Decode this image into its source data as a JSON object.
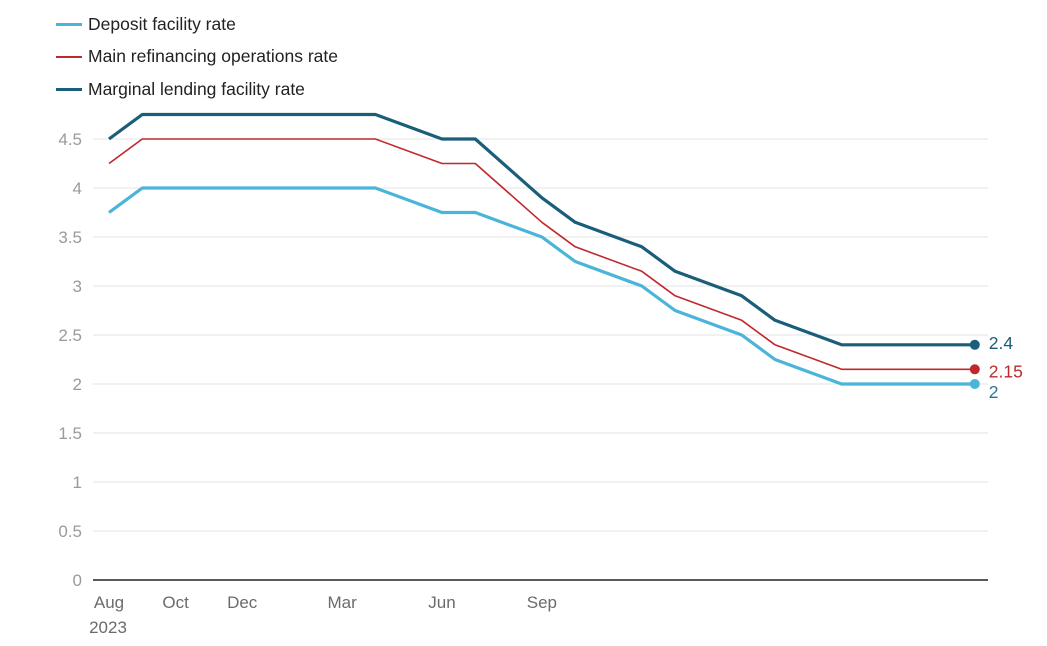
{
  "chart_data": {
    "type": "line",
    "title": "",
    "xlabel": "",
    "ylabel": "",
    "ylim": [
      0,
      4.75
    ],
    "yticks": [
      0,
      0.5,
      1,
      1.5,
      2,
      2.5,
      3,
      3.5,
      4,
      4.5
    ],
    "ytick_labels": [
      "0",
      "0.5",
      "1",
      "1.5",
      "2",
      "2.5",
      "3",
      "3.5",
      "4",
      "4.5"
    ],
    "grid": true,
    "legend_position": "top-left",
    "x": [
      "2023-08",
      "2023-09",
      "2024-04",
      "2024-06",
      "2024-07",
      "2024-09",
      "2024-10",
      "2024-12",
      "2025-01",
      "2025-03",
      "2025-04",
      "2025-06",
      "2025-10"
    ],
    "x_month_index": [
      0,
      1,
      8,
      10,
      11,
      13,
      14,
      16,
      17,
      19,
      20,
      22,
      26
    ],
    "xticks": [
      {
        "month_index": 0,
        "label": "Aug",
        "sublabel": "2023"
      },
      {
        "month_index": 2,
        "label": "Oct",
        "sublabel": ""
      },
      {
        "month_index": 4,
        "label": "Dec",
        "sublabel": ""
      },
      {
        "month_index": 7,
        "label": "Mar",
        "sublabel": ""
      },
      {
        "month_index": 10,
        "label": "Jun",
        "sublabel": ""
      },
      {
        "month_index": 13,
        "label": "Sep",
        "sublabel": ""
      }
    ],
    "series": [
      {
        "name": "Deposit facility rate",
        "color": "#4ab4d9",
        "label_color": "#2b7596",
        "values": [
          3.75,
          4.0,
          4.0,
          3.75,
          3.75,
          3.5,
          3.25,
          3.0,
          2.75,
          2.5,
          2.25,
          2.0,
          2.0
        ],
        "end_label": "2"
      },
      {
        "name": "Main refinancing operations rate",
        "color": "#c0282d",
        "label_color": "#c0282d",
        "values": [
          4.25,
          4.5,
          4.5,
          4.25,
          4.25,
          3.65,
          3.4,
          3.15,
          2.9,
          2.65,
          2.4,
          2.15,
          2.15
        ],
        "end_label": "2.15"
      },
      {
        "name": "Marginal lending facility rate",
        "color": "#1b5e7a",
        "label_color": "#1b5e7a",
        "values": [
          4.5,
          4.75,
          4.75,
          4.5,
          4.5,
          3.9,
          3.65,
          3.4,
          3.15,
          2.9,
          2.65,
          2.4,
          2.4
        ],
        "end_label": "2.4"
      }
    ]
  },
  "legend": {
    "items": [
      {
        "label": "Deposit facility rate",
        "color": "#4ab4d9"
      },
      {
        "label": "Main refinancing operations rate",
        "color": "#c0282d"
      },
      {
        "label": "Marginal lending facility rate",
        "color": "#1b5e7a"
      }
    ]
  }
}
